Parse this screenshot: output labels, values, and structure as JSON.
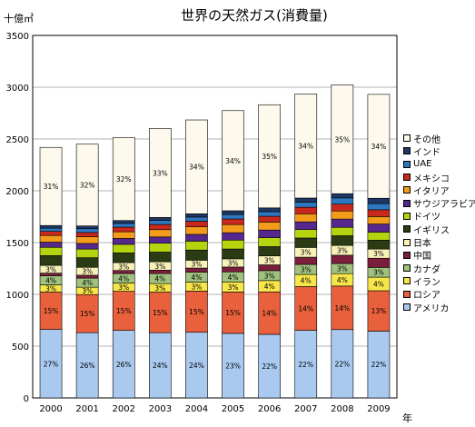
{
  "chart_data": {
    "type": "bar",
    "stacked": true,
    "title": "世界の天然ガス(消費量)",
    "ylabel": "十億㎥",
    "xlabel": "年",
    "ylim": [
      0,
      3500
    ],
    "yticks": [
      "0",
      "500",
      "1000",
      "1500",
      "2000",
      "2500",
      "3000",
      "3500"
    ],
    "grid": true,
    "legend_position": "right",
    "categories": [
      "2000",
      "2001",
      "2002",
      "2003",
      "2004",
      "2005",
      "2006",
      "2007",
      "2008",
      "2009"
    ],
    "series": [
      {
        "name": "アメリカ",
        "color": "#a9c9ef",
        "values": [
          661,
          630,
          652,
          630,
          634,
          623,
          614,
          653,
          660,
          645
        ],
        "labels": [
          "27%",
          "26%",
          "26%",
          "24%",
          "24%",
          "23%",
          "22%",
          "22%",
          "22%",
          "22%"
        ]
      },
      {
        "name": "ロシア",
        "color": "#e8613c",
        "values": [
          361,
          368,
          378,
          392,
          398,
          400,
          410,
          422,
          420,
          390
        ],
        "labels": [
          "15%",
          "15%",
          "15%",
          "15%",
          "15%",
          "15%",
          "14%",
          "14%",
          "14%",
          "13%"
        ]
      },
      {
        "name": "イラン",
        "color": "#f7e64a",
        "values": [
          70,
          71,
          80,
          82,
          87,
          97,
          109,
          118,
          120,
          131
        ],
        "labels": [
          "3%",
          "3%",
          "3%",
          "3%",
          "3%",
          "3%",
          "4%",
          "4%",
          "4%",
          "4%"
        ]
      },
      {
        "name": "カナダ",
        "color": "#9fc27e",
        "values": [
          88,
          88,
          91,
          96,
          95,
          97,
          96,
          96,
          97,
          94
        ],
        "labels": [
          "4%",
          "4%",
          "4%",
          "4%",
          "4%",
          "4%",
          "3%",
          "3%",
          "3%",
          "3%"
        ]
      },
      {
        "name": "中国",
        "color": "#7a1e3c",
        "values": [
          25,
          28,
          30,
          34,
          40,
          47,
          56,
          70,
          81,
          89
        ],
        "labels": []
      },
      {
        "name": "日本",
        "color": "#f8f2b8",
        "values": [
          75,
          76,
          76,
          80,
          76,
          79,
          86,
          94,
          94,
          88
        ],
        "labels": [
          "3%",
          "3%",
          "3%",
          "3%",
          "3%",
          "3%",
          "3%",
          "3%",
          "3%",
          "3%"
        ]
      },
      {
        "name": "イギリス",
        "color": "#2b3b14",
        "values": [
          94,
          93,
          93,
          94,
          98,
          95,
          90,
          91,
          94,
          86
        ],
        "labels": []
      },
      {
        "name": "ドイツ",
        "color": "#b5d40f",
        "values": [
          80,
          83,
          83,
          86,
          86,
          86,
          87,
          82,
          81,
          78
        ],
        "labels": []
      },
      {
        "name": "サウジアラビア",
        "color": "#56288e",
        "values": [
          50,
          54,
          57,
          60,
          65,
          71,
          73,
          74,
          80,
          78
        ],
        "labels": []
      },
      {
        "name": "イタリア",
        "color": "#f39b1b",
        "values": [
          65,
          65,
          64,
          71,
          73,
          79,
          77,
          78,
          78,
          72
        ],
        "labels": []
      },
      {
        "name": "メキシコ",
        "color": "#c9281d",
        "values": [
          39,
          41,
          45,
          50,
          54,
          54,
          56,
          63,
          66,
          66
        ],
        "labels": []
      },
      {
        "name": "UAE",
        "color": "#2d78c0",
        "values": [
          31,
          37,
          36,
          38,
          40,
          43,
          44,
          49,
          60,
          59
        ],
        "labels": []
      },
      {
        "name": "インド",
        "color": "#1e3764",
        "values": [
          26,
          27,
          28,
          30,
          32,
          36,
          37,
          40,
          41,
          52
        ],
        "labels": []
      },
      {
        "name": "その他",
        "color": "#fdf9ec",
        "values": [
          754,
          789,
          800,
          859,
          906,
          967,
          996,
          1005,
          1051,
          1003
        ],
        "labels": [
          "31%",
          "32%",
          "32%",
          "33%",
          "34%",
          "34%",
          "35%",
          "34%",
          "35%",
          "34%"
        ]
      }
    ]
  }
}
